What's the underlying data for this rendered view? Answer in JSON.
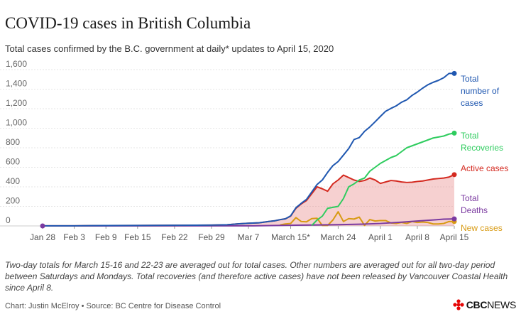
{
  "title": "COVID-19 cases in British Columbia",
  "subtitle": "Total cases confirmed by the B.C. government at daily* updates to April 15, 2020",
  "note": "Two-day totals for March 15-16 and 22-23 are averaged out for total cases. Other numbers are averaged out for all two-day period between Saturdays and Mondays. Total recoveries (and therefore active cases) have not been released by Vancouver Coastal Health since April 8.",
  "source": "Chart: Justin McElroy • Source: BC Centre for Disease Control",
  "logo": {
    "brand": "CBC",
    "suffix": "NEWS",
    "color": "#e60505"
  },
  "chart_data": {
    "type": "line",
    "x_ticks": [
      "Jan 28",
      "Feb 3",
      "Feb 9",
      "Feb 15",
      "Feb 22",
      "Feb 29",
      "Mar 7",
      "March 15*",
      "March 24",
      "April 1",
      "April 8",
      "April 15"
    ],
    "y_ticks": [
      0,
      200,
      400,
      600,
      800,
      1000,
      1200,
      1400,
      1600
    ],
    "y_tick_labels": [
      "0",
      "200",
      "400",
      "600",
      "800",
      "1,000",
      "1,200",
      "1,400",
      "1,600"
    ],
    "ylim": [
      0,
      1600
    ],
    "xlim": [
      "2020-01-28",
      "2020-04-15"
    ],
    "grid": true,
    "series": [
      {
        "name": "Total number of cases",
        "label_lines": [
          "Total",
          "number of",
          "cases"
        ],
        "color": "#1f57b0",
        "x": [
          "2020-01-28",
          "2020-02-03",
          "2020-02-09",
          "2020-02-15",
          "2020-02-22",
          "2020-02-29",
          "2020-03-03",
          "2020-03-05",
          "2020-03-07",
          "2020-03-09",
          "2020-03-10",
          "2020-03-11",
          "2020-03-12",
          "2020-03-13",
          "2020-03-14",
          "2020-03-15",
          "2020-03-16",
          "2020-03-17",
          "2020-03-18",
          "2020-03-19",
          "2020-03-20",
          "2020-03-21",
          "2020-03-22",
          "2020-03-23",
          "2020-03-24",
          "2020-03-25",
          "2020-03-26",
          "2020-03-27",
          "2020-03-28",
          "2020-03-29",
          "2020-03-30",
          "2020-03-31",
          "2020-04-01",
          "2020-04-02",
          "2020-04-03",
          "2020-04-04",
          "2020-04-05",
          "2020-04-06",
          "2020-04-07",
          "2020-04-08",
          "2020-04-09",
          "2020-04-10",
          "2020-04-11",
          "2020-04-12",
          "2020-04-13",
          "2020-04-14",
          "2020-04-15"
        ],
        "y": [
          1,
          1,
          4,
          5,
          6,
          8,
          12,
          21,
          27,
          32,
          39,
          46,
          53,
          64,
          73,
          103,
          186,
          231,
          271,
          348,
          424,
          470,
          548,
          617,
          659,
          725,
          792,
          884,
          904,
          968,
          1013,
          1066,
          1121,
          1174,
          1203,
          1229,
          1266,
          1291,
          1336,
          1370,
          1410,
          1445,
          1470,
          1490,
          1517,
          1561,
          1561
        ]
      },
      {
        "name": "Total Recoveries",
        "label_lines": [
          "Total",
          "Recoveries"
        ],
        "color": "#2ecc5e",
        "x": [
          "2020-03-19",
          "2020-03-20",
          "2020-03-21",
          "2020-03-22",
          "2020-03-23",
          "2020-03-24",
          "2020-03-25",
          "2020-03-26",
          "2020-03-27",
          "2020-03-28",
          "2020-03-29",
          "2020-03-30",
          "2020-03-31",
          "2020-04-01",
          "2020-04-02",
          "2020-04-03",
          "2020-04-04",
          "2020-04-05",
          "2020-04-06",
          "2020-04-07",
          "2020-04-08",
          "2020-04-09",
          "2020-04-10",
          "2020-04-11",
          "2020-04-12",
          "2020-04-13",
          "2020-04-14",
          "2020-04-15"
        ],
        "y": [
          5,
          60,
          100,
          180,
          190,
          200,
          280,
          400,
          430,
          470,
          490,
          560,
          600,
          640,
          670,
          700,
          720,
          760,
          800,
          820,
          840,
          860,
          880,
          900,
          910,
          920,
          940,
          950
        ]
      },
      {
        "name": "Active cases",
        "label_lines": [
          "Active cases"
        ],
        "color": "#d42a20",
        "fill": "rgba(230,120,120,0.35)",
        "x": [
          "2020-01-28",
          "2020-02-03",
          "2020-02-09",
          "2020-02-15",
          "2020-02-22",
          "2020-02-29",
          "2020-03-03",
          "2020-03-05",
          "2020-03-07",
          "2020-03-09",
          "2020-03-10",
          "2020-03-11",
          "2020-03-12",
          "2020-03-13",
          "2020-03-14",
          "2020-03-15",
          "2020-03-16",
          "2020-03-17",
          "2020-03-18",
          "2020-03-19",
          "2020-03-20",
          "2020-03-21",
          "2020-03-22",
          "2020-03-23",
          "2020-03-24",
          "2020-03-25",
          "2020-03-26",
          "2020-03-27",
          "2020-03-28",
          "2020-03-29",
          "2020-03-30",
          "2020-03-31",
          "2020-04-01",
          "2020-04-02",
          "2020-04-03",
          "2020-04-04",
          "2020-04-05",
          "2020-04-06",
          "2020-04-07",
          "2020-04-08",
          "2020-04-09",
          "2020-04-10",
          "2020-04-11",
          "2020-04-12",
          "2020-04-13",
          "2020-04-14",
          "2020-04-15"
        ],
        "y": [
          1,
          1,
          4,
          5,
          6,
          8,
          12,
          21,
          27,
          32,
          39,
          46,
          53,
          64,
          73,
          100,
          180,
          225,
          260,
          330,
          400,
          380,
          355,
          430,
          470,
          520,
          495,
          470,
          455,
          465,
          490,
          470,
          435,
          450,
          465,
          460,
          450,
          445,
          447,
          455,
          460,
          470,
          480,
          485,
          490,
          500,
          525
        ]
      },
      {
        "name": "Total Deaths",
        "label_lines": [
          "Total",
          "Deaths"
        ],
        "color": "#7b3aa0",
        "x": [
          "2020-01-28",
          "2020-03-08",
          "2020-03-16",
          "2020-03-20",
          "2020-03-24",
          "2020-03-28",
          "2020-04-01",
          "2020-04-05",
          "2020-04-08",
          "2020-04-11",
          "2020-04-13",
          "2020-04-15"
        ],
        "y": [
          0,
          1,
          7,
          10,
          13,
          17,
          25,
          38,
          50,
          61,
          69,
          72
        ]
      },
      {
        "name": "New cases",
        "label_lines": [
          "New cases"
        ],
        "color": "#d89a12",
        "x": [
          "2020-03-13",
          "2020-03-14",
          "2020-03-15",
          "2020-03-16",
          "2020-03-17",
          "2020-03-18",
          "2020-03-19",
          "2020-03-20",
          "2020-03-21",
          "2020-03-22",
          "2020-03-23",
          "2020-03-24",
          "2020-03-25",
          "2020-03-26",
          "2020-03-27",
          "2020-03-28",
          "2020-03-29",
          "2020-03-30",
          "2020-03-31",
          "2020-04-01",
          "2020-04-02",
          "2020-04-03",
          "2020-04-04",
          "2020-04-05",
          "2020-04-06",
          "2020-04-07",
          "2020-04-08",
          "2020-04-09",
          "2020-04-10",
          "2020-04-11",
          "2020-04-12",
          "2020-04-13",
          "2020-04-14",
          "2020-04-15"
        ],
        "y": [
          10,
          20,
          25,
          85,
          45,
          42,
          75,
          78,
          5,
          5,
          60,
          145,
          45,
          75,
          70,
          90,
          5,
          65,
          50,
          55,
          55,
          30,
          25,
          35,
          25,
          45,
          35,
          40,
          35,
          20,
          20,
          25,
          45,
          45
        ]
      }
    ]
  }
}
